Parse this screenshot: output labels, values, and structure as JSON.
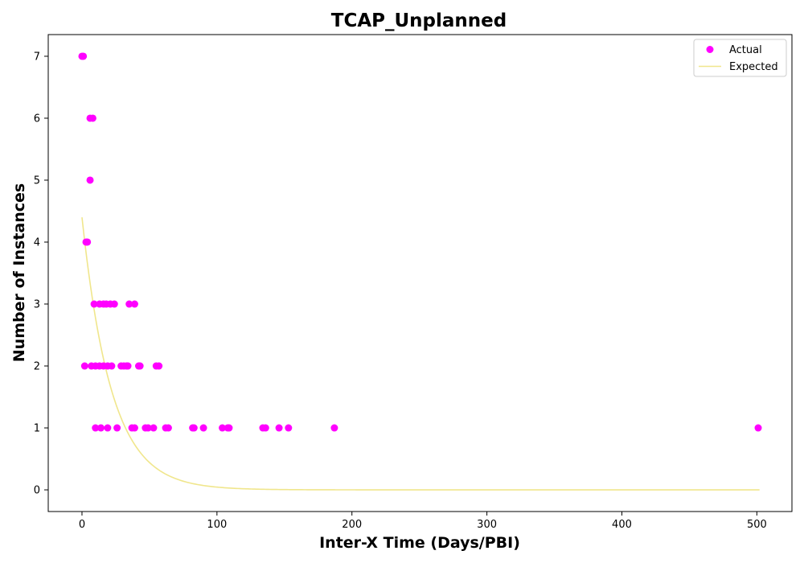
{
  "chart_data": {
    "type": "scatter",
    "title": "TCAP_Unplanned",
    "xlabel": "Inter-X Time (Days/PBI)",
    "ylabel": "Number of Instances",
    "xlim": [
      -25,
      526
    ],
    "ylim": [
      -0.35,
      7.35
    ],
    "xticks": [
      0,
      100,
      200,
      300,
      400,
      500
    ],
    "yticks": [
      0,
      1,
      2,
      3,
      4,
      5,
      6,
      7
    ],
    "grid": false,
    "legend_position": "top-right",
    "series": [
      {
        "name": "Actual",
        "kind": "scatter",
        "color": "#ff00ff",
        "points": [
          [
            0,
            7
          ],
          [
            1,
            7
          ],
          [
            6,
            6
          ],
          [
            8,
            6
          ],
          [
            6,
            5
          ],
          [
            3,
            4
          ],
          [
            4,
            4
          ],
          [
            9,
            3
          ],
          [
            13,
            3
          ],
          [
            16,
            3
          ],
          [
            18,
            3
          ],
          [
            21,
            3
          ],
          [
            24,
            3
          ],
          [
            35,
            3
          ],
          [
            39,
            3
          ],
          [
            2,
            2
          ],
          [
            7,
            2
          ],
          [
            10,
            2
          ],
          [
            13,
            2
          ],
          [
            16,
            2
          ],
          [
            19,
            2
          ],
          [
            22,
            2
          ],
          [
            29,
            2
          ],
          [
            31,
            2
          ],
          [
            33,
            2
          ],
          [
            34,
            2
          ],
          [
            42,
            2
          ],
          [
            43,
            2
          ],
          [
            55,
            2
          ],
          [
            57,
            2
          ],
          [
            10,
            1
          ],
          [
            14,
            1
          ],
          [
            19,
            1
          ],
          [
            26,
            1
          ],
          [
            37,
            1
          ],
          [
            39,
            1
          ],
          [
            47,
            1
          ],
          [
            49,
            1
          ],
          [
            53,
            1
          ],
          [
            62,
            1
          ],
          [
            64,
            1
          ],
          [
            82,
            1
          ],
          [
            83,
            1
          ],
          [
            90,
            1
          ],
          [
            104,
            1
          ],
          [
            108,
            1
          ],
          [
            109,
            1
          ],
          [
            134,
            1
          ],
          [
            136,
            1
          ],
          [
            146,
            1
          ],
          [
            153,
            1
          ],
          [
            187,
            1
          ],
          [
            501,
            1
          ]
        ]
      },
      {
        "name": "Expected",
        "kind": "line",
        "color": "#f0e68c",
        "curve": {
          "form": "exponential",
          "a": 4.4,
          "rate": 0.046,
          "x_start": 0,
          "x_end": 502
        }
      }
    ]
  }
}
